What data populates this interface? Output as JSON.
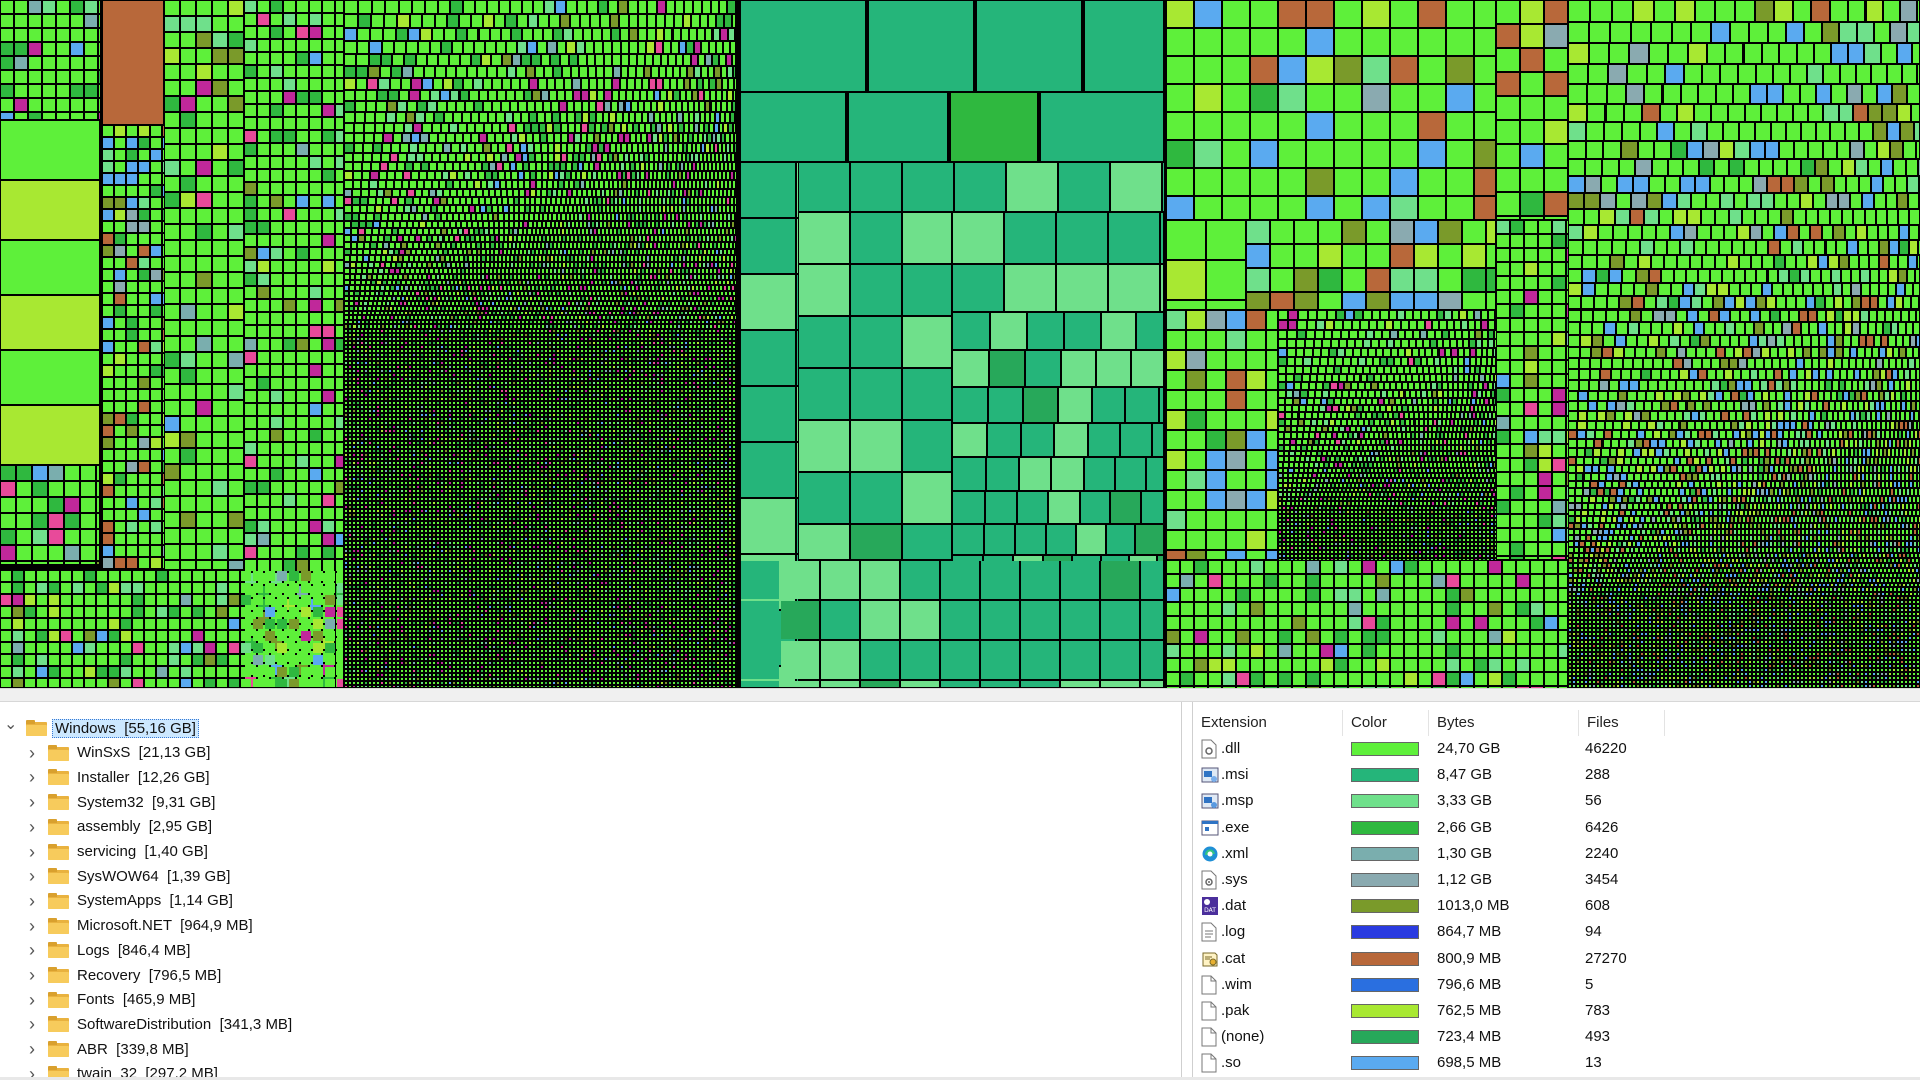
{
  "tree": {
    "root": {
      "name": "Windows",
      "size": "[55,16 GB]"
    },
    "children": [
      {
        "name": "WinSxS",
        "size": "[21,13 GB]"
      },
      {
        "name": "Installer",
        "size": "[12,26 GB]"
      },
      {
        "name": "System32",
        "size": "[9,31 GB]"
      },
      {
        "name": "assembly",
        "size": "[2,95 GB]"
      },
      {
        "name": "servicing",
        "size": "[1,40 GB]"
      },
      {
        "name": "SysWOW64",
        "size": "[1,39 GB]"
      },
      {
        "name": "SystemApps",
        "size": "[1,14 GB]"
      },
      {
        "name": "Microsoft.NET",
        "size": "[964,9 MB]"
      },
      {
        "name": "Logs",
        "size": "[846,4 MB]"
      },
      {
        "name": "Recovery",
        "size": "[796,5 MB]"
      },
      {
        "name": "Fonts",
        "size": "[465,9 MB]"
      },
      {
        "name": "SoftwareDistribution",
        "size": "[341,3 MB]"
      },
      {
        "name": "ABR",
        "size": "[339,8 MB]"
      },
      {
        "name": "twain_32",
        "size": "[297,2 MB]"
      }
    ]
  },
  "extensions": {
    "columns": [
      "Extension",
      "Color",
      "Bytes",
      "Files"
    ],
    "rows": [
      {
        "ext": ".dll",
        "color": "#5ef03a",
        "bytes": "24,70 GB",
        "files": "46220",
        "icon": "dll-file-icon"
      },
      {
        "ext": ".msi",
        "color": "#25b57a",
        "bytes": "8,47 GB",
        "files": "288",
        "icon": "msi-installer-icon"
      },
      {
        "ext": ".msp",
        "color": "#6fe08b",
        "bytes": "3,33 GB",
        "files": "56",
        "icon": "msp-patch-icon"
      },
      {
        "ext": ".exe",
        "color": "#2fb83f",
        "bytes": "2,66 GB",
        "files": "6426",
        "icon": "exe-window-icon"
      },
      {
        "ext": ".xml",
        "color": "#7aaeae",
        "bytes": "1,30 GB",
        "files": "2240",
        "icon": "edge-browser-icon"
      },
      {
        "ext": ".sys",
        "color": "#8aaab0",
        "bytes": "1,12 GB",
        "files": "3454",
        "icon": "sys-file-icon"
      },
      {
        "ext": ".dat",
        "color": "#7a9a2a",
        "bytes": "1013,0 MB",
        "files": "608",
        "icon": "dat-file-icon"
      },
      {
        "ext": ".log",
        "color": "#2a3be0",
        "bytes": "864,7 MB",
        "files": "94",
        "icon": "log-text-icon"
      },
      {
        "ext": ".cat",
        "color": "#b8683a",
        "bytes": "800,9 MB",
        "files": "27270",
        "icon": "cat-certificate-icon"
      },
      {
        "ext": ".wim",
        "color": "#2a6fe0",
        "bytes": "796,6 MB",
        "files": "5",
        "icon": "blank-file-icon"
      },
      {
        "ext": ".pak",
        "color": "#a8e832",
        "bytes": "762,5 MB",
        "files": "783",
        "icon": "blank-file-icon"
      },
      {
        "ext": "(none)",
        "color": "#27a85a",
        "bytes": "723,4 MB",
        "files": "493",
        "icon": "blank-file-icon"
      },
      {
        "ext": ".so",
        "color": "#5aaaf0",
        "bytes": "698,5 MB",
        "files": "13",
        "icon": "blank-file-icon"
      }
    ]
  },
  "treemap": {
    "palette": [
      "#5ef03a",
      "#25b57a",
      "#6fe08b",
      "#2fb83f",
      "#7aaeae",
      "#8aaab0",
      "#7a9a2a",
      "#2a3be0",
      "#b8683a",
      "#2a6fe0",
      "#a8e832",
      "#27a85a",
      "#5aaaf0",
      "#c0289a",
      "#e84a9a",
      "#f0b060"
    ]
  }
}
